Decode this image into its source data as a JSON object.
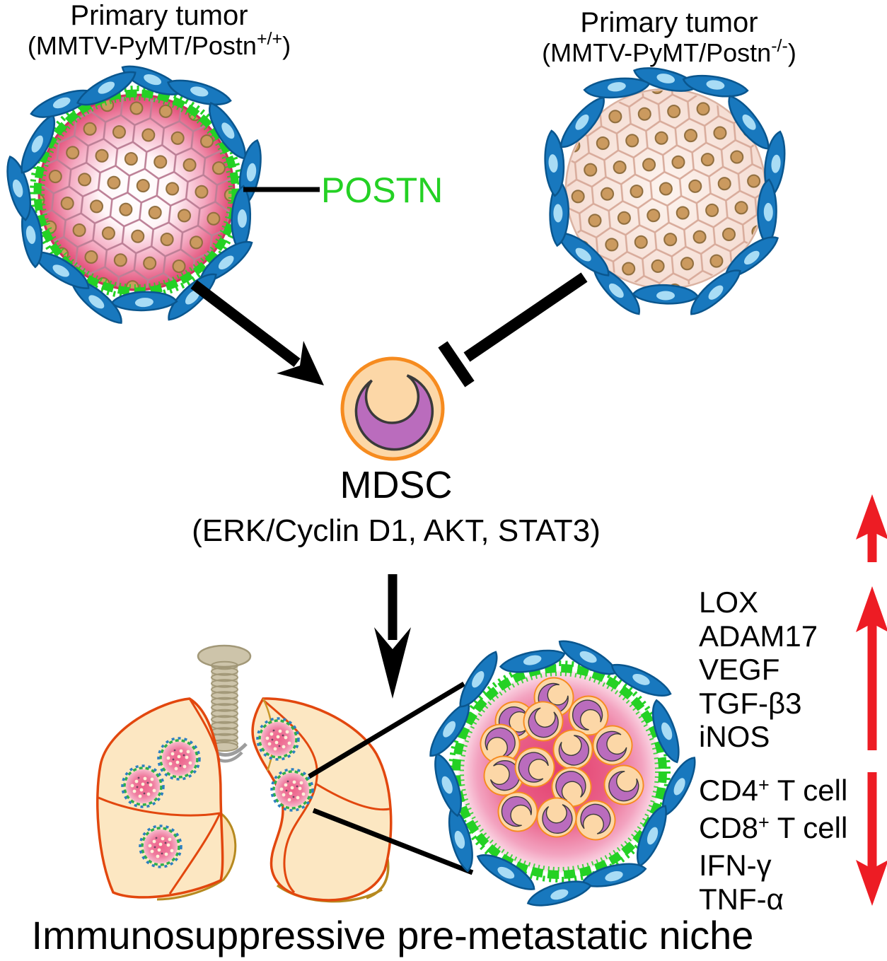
{
  "figure": {
    "tumor_left": {
      "title": "Primary tumor",
      "genotype_pre": "(MMTV-PyMT/Postn",
      "genotype_sup": "+/+",
      "genotype_post": ")"
    },
    "tumor_right": {
      "title": "Primary tumor",
      "genotype_pre": "(MMTV-PyMT/Postn",
      "genotype_sup": "-/-",
      "genotype_post": ")"
    },
    "postn_label": "POSTN",
    "mdsc": {
      "label": "MDSC",
      "pathways": "(ERK/Cyclin D1, AKT, STAT3)"
    },
    "upregulated_factors": [
      "LOX",
      "ADAM17",
      "VEGF",
      "TGF-β3",
      "iNOS"
    ],
    "downregulated": [
      {
        "pre": "CD4",
        "sup": "+",
        "post": " T cell"
      },
      {
        "pre": "CD8",
        "sup": "+",
        "post": " T cell"
      },
      {
        "pre": "IFN-γ",
        "sup": "",
        "post": ""
      },
      {
        "pre": "TNF-α",
        "sup": "",
        "post": ""
      }
    ],
    "caption": "Immunosuppressive pre-metastatic niche",
    "colors": {
      "postn_green": "#24d124",
      "arrow_red": "#ed1c24"
    }
  }
}
